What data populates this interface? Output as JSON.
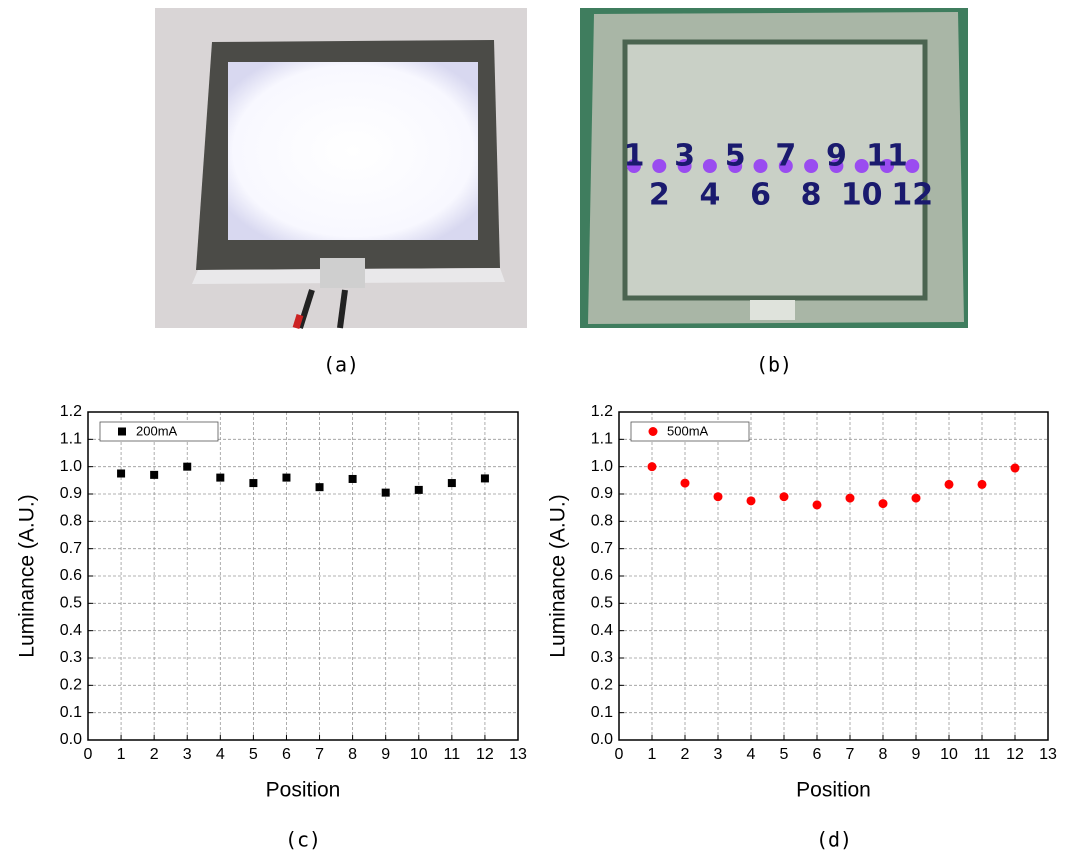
{
  "photos": [
    {
      "caption": "(a)"
    },
    {
      "caption": "(b)",
      "labels": [
        "1",
        "2",
        "3",
        "4",
        "5",
        "6",
        "7",
        "8",
        "9",
        "10",
        "11",
        "12"
      ]
    }
  ],
  "chart_data": [
    {
      "type": "scatter",
      "caption": "(c)",
      "xlabel": "Position",
      "ylabel": "Luminance (A.U.)",
      "x": [
        1,
        2,
        3,
        4,
        5,
        6,
        7,
        8,
        9,
        10,
        11,
        12
      ],
      "series": [
        {
          "name": "200mA",
          "color": "#000000",
          "marker": "square",
          "values": [
            0.975,
            0.97,
            1.0,
            0.96,
            0.94,
            0.96,
            0.925,
            0.955,
            0.905,
            0.915,
            0.94,
            0.957
          ]
        }
      ],
      "xlim": [
        0,
        13
      ],
      "xticks": [
        0,
        1,
        2,
        3,
        4,
        5,
        6,
        7,
        8,
        9,
        10,
        11,
        12,
        13
      ],
      "ylim": [
        0,
        1.2
      ],
      "yticks": [
        {
          "value": 0,
          "label": "0.0"
        },
        0.1,
        0.2,
        0.3,
        0.4,
        0.5,
        0.6,
        0.7,
        0.8,
        0.9,
        {
          "value": 1,
          "label": "1.0"
        },
        1.1,
        1.2
      ],
      "grid": true,
      "legend": "upper left"
    },
    {
      "type": "scatter",
      "caption": "(d)",
      "xlabel": "Position",
      "ylabel": "Luminance (A.U.)",
      "x": [
        1,
        2,
        3,
        4,
        5,
        6,
        7,
        8,
        9,
        10,
        11,
        12
      ],
      "series": [
        {
          "name": "500mA",
          "color": "#ff0000",
          "marker": "circle",
          "values": [
            1.0,
            0.94,
            0.89,
            0.875,
            0.89,
            0.86,
            0.885,
            0.865,
            0.885,
            0.935,
            0.935,
            0.995
          ]
        }
      ],
      "xlim": [
        0,
        13
      ],
      "xticks": [
        0,
        1,
        2,
        3,
        4,
        5,
        6,
        7,
        8,
        9,
        10,
        11,
        12,
        13
      ],
      "ylim": [
        0,
        1.2
      ],
      "yticks": [
        {
          "value": 0,
          "label": "0.0"
        },
        0.1,
        0.2,
        0.3,
        0.4,
        0.5,
        0.6,
        0.7,
        0.8,
        0.9,
        {
          "value": 1,
          "label": "1.0"
        },
        1.1,
        1.2
      ],
      "grid": true,
      "legend": "upper left"
    }
  ]
}
